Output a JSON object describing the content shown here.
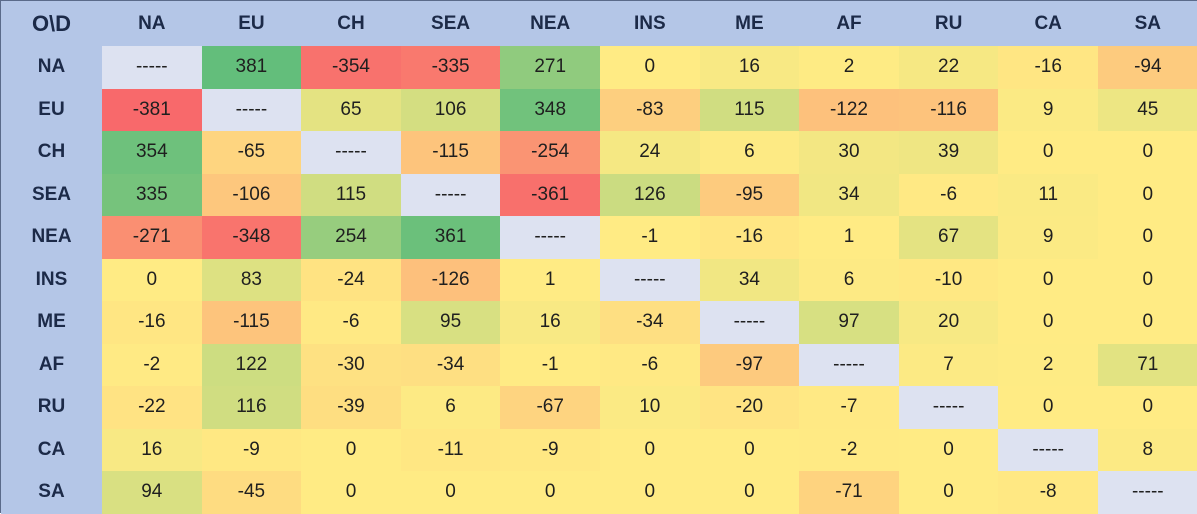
{
  "chart_data": {
    "type": "heatmap",
    "corner_label": "O\\D",
    "columns": [
      "NA",
      "EU",
      "CH",
      "SEA",
      "NEA",
      "INS",
      "ME",
      "AF",
      "RU",
      "CA",
      "SA"
    ],
    "rows": [
      "NA",
      "EU",
      "CH",
      "SEA",
      "NEA",
      "INS",
      "ME",
      "AF",
      "RU",
      "CA",
      "SA"
    ],
    "diagonal_label": "-----",
    "values": [
      [
        null,
        381,
        -354,
        -335,
        271,
        0,
        16,
        2,
        22,
        -16,
        -94
      ],
      [
        -381,
        null,
        65,
        106,
        348,
        -83,
        115,
        -122,
        -116,
        9,
        45
      ],
      [
        354,
        -65,
        null,
        -115,
        -254,
        24,
        6,
        30,
        39,
        0,
        0
      ],
      [
        335,
        -106,
        115,
        null,
        -361,
        126,
        -95,
        34,
        -6,
        11,
        0
      ],
      [
        -271,
        -348,
        254,
        361,
        null,
        -1,
        -16,
        1,
        67,
        9,
        0
      ],
      [
        0,
        83,
        -24,
        -126,
        1,
        null,
        34,
        6,
        -10,
        0,
        0
      ],
      [
        -16,
        -115,
        -6,
        95,
        16,
        -34,
        null,
        97,
        20,
        0,
        0
      ],
      [
        -2,
        122,
        -30,
        -34,
        -1,
        -6,
        -97,
        null,
        7,
        2,
        71
      ],
      [
        -22,
        116,
        -39,
        6,
        -67,
        10,
        -20,
        -7,
        null,
        0,
        0
      ],
      [
        16,
        -9,
        0,
        -11,
        -9,
        0,
        0,
        -2,
        0,
        null,
        8
      ],
      [
        94,
        -45,
        0,
        0,
        0,
        0,
        0,
        -71,
        0,
        -8,
        null
      ]
    ],
    "color_scale": {
      "min": -381,
      "max": 381,
      "negative_color": "#f8696b",
      "neutral_color": "#ffeb84",
      "positive_color": "#63be7b",
      "diagonal_color": "#dde2f1",
      "header_color": "#b4c6e7"
    }
  }
}
